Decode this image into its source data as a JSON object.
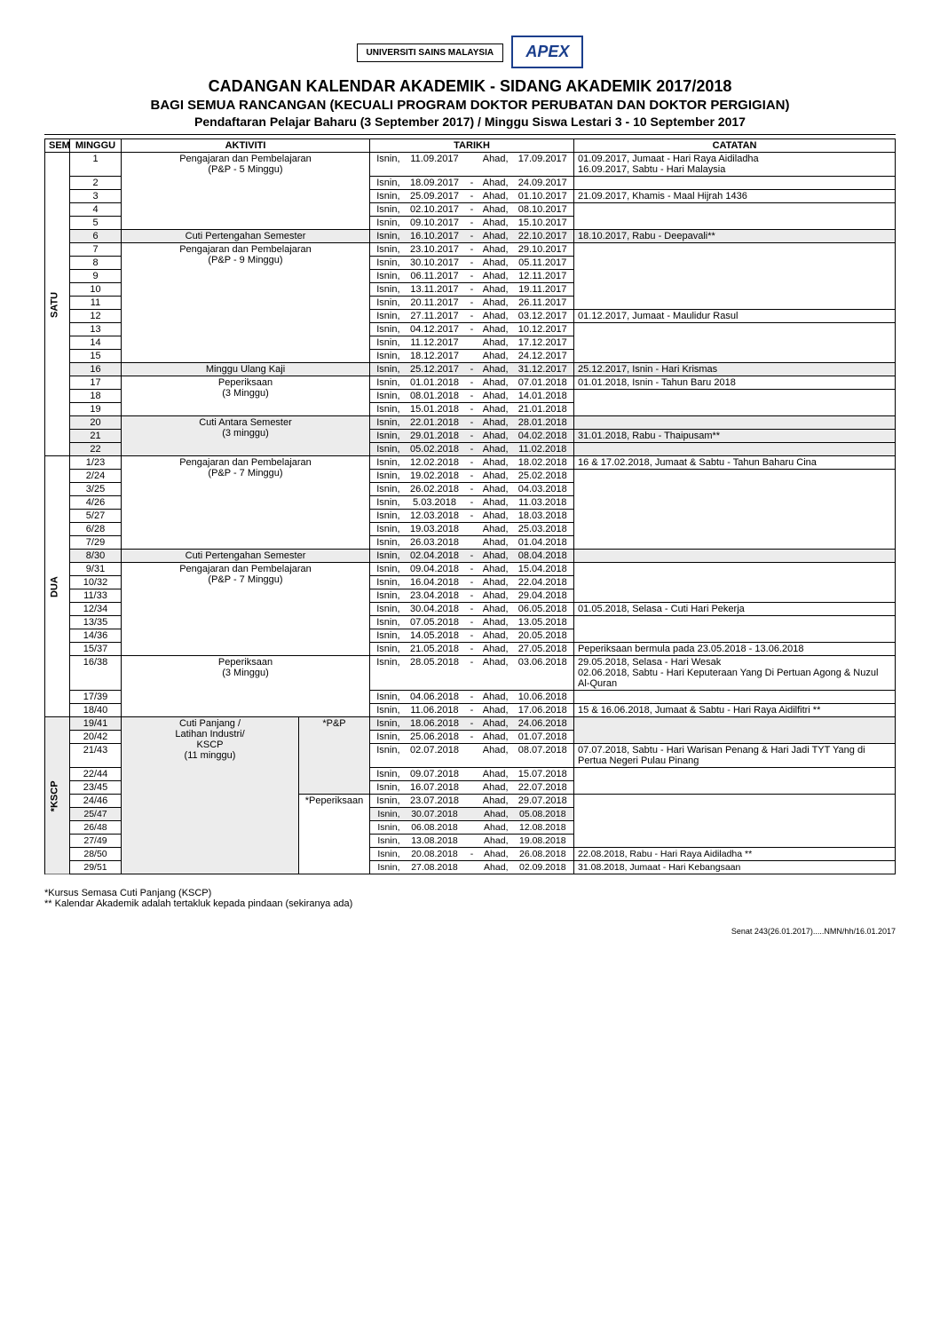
{
  "header": {
    "logo_text": "UNIVERSITI SAINS MALAYSIA",
    "apex_text": "APEX",
    "title1": "CADANGAN KALENDAR AKADEMIK - SIDANG AKADEMIK 2017/2018",
    "title2": "BAGI SEMUA RANCANGAN (KECUALI PROGRAM DOKTOR PERUBATAN DAN DOKTOR PERGIGIAN)",
    "title3": "Pendaftaran Pelajar Baharu (3 September 2017)  / Minggu Siswa Lestari 3 - 10 September 2017"
  },
  "columns": {
    "sem": "SEM",
    "week": "MINGGU",
    "act": "AKTIVITI",
    "date": "TARIKH",
    "note": "CATATAN"
  },
  "sem_labels": {
    "satu": "SATU",
    "dua": "DUA",
    "kscp": "*KSCP"
  },
  "activities": {
    "pp5": "Pengajaran dan Pembelajaran\n(P&P - 5 Minggu)",
    "cps": "Cuti Pertengahan Semester",
    "pp9": "Pengajaran dan Pembelajaran\n(P&P - 9 Minggu)",
    "muk": "Minggu Ulang Kaji",
    "pep3": "Peperiksaan\n(3 Minggu)",
    "cas3": "Cuti Antara Semester\n(3 minggu)",
    "pp7a": "Pengajaran dan Pembelajaran\n(P&P - 7 Minggu)",
    "cps2": "Cuti Pertengahan Semester",
    "pp7b": "Pengajaran dan Pembelajaran\n(P&P - 7 Minggu)",
    "pep3b": "Peperiksaan\n(3 Minggu)",
    "kscp_left": "Cuti Panjang /\nLatihan Industri/\nKSCP\n(11 minggu)",
    "kscp_pp": "*P&P",
    "kscp_pep": "*Peperiksaan"
  },
  "rows": [
    {
      "blk": "satu",
      "g": "pp5",
      "w": "1",
      "d1": "Isnin,",
      "dt1": "11.09.2017",
      "dash": "",
      "d2": "Ahad,",
      "dt2": "17.09.2017",
      "note": "01.09.2017, Jumaat - Hari Raya Aidiladha\n16.09.2017, Sabtu - Hari Malaysia"
    },
    {
      "blk": "satu",
      "g": "pp5",
      "w": "2",
      "d1": "Isnin,",
      "dt1": "18.09.2017",
      "dash": "-",
      "d2": "Ahad,",
      "dt2": "24.09.2017",
      "note": ""
    },
    {
      "blk": "satu",
      "g": "pp5",
      "w": "3",
      "d1": "Isnin,",
      "dt1": "25.09.2017",
      "dash": "-",
      "d2": "Ahad,",
      "dt2": "01.10.2017",
      "note": "21.09.2017, Khamis - Maal Hijrah 1436"
    },
    {
      "blk": "satu",
      "g": "pp5",
      "w": "4",
      "d1": "Isnin,",
      "dt1": "02.10.2017",
      "dash": "-",
      "d2": "Ahad,",
      "dt2": "08.10.2017",
      "note": ""
    },
    {
      "blk": "satu",
      "g": "pp5",
      "w": "5",
      "d1": "Isnin,",
      "dt1": "09.10.2017",
      "dash": "-",
      "d2": "Ahad,",
      "dt2": "15.10.2017",
      "note": ""
    },
    {
      "blk": "satu",
      "g": "cps",
      "w": "6",
      "d1": "Isnin,",
      "dt1": "16.10.2017",
      "dash": "-",
      "d2": "Ahad,",
      "dt2": "22.10.2017",
      "note": "18.10.2017, Rabu - Deepavali**",
      "shaded": true
    },
    {
      "blk": "satu",
      "g": "pp9",
      "w": "7",
      "d1": "Isnin,",
      "dt1": "23.10.2017",
      "dash": "-",
      "d2": "Ahad,",
      "dt2": "29.10.2017",
      "note": ""
    },
    {
      "blk": "satu",
      "g": "pp9",
      "w": "8",
      "d1": "Isnin,",
      "dt1": "30.10.2017",
      "dash": "-",
      "d2": "Ahad,",
      "dt2": "05.11.2017",
      "note": ""
    },
    {
      "blk": "satu",
      "g": "pp9",
      "w": "9",
      "d1": "Isnin,",
      "dt1": "06.11.2017",
      "dash": "-",
      "d2": "Ahad,",
      "dt2": "12.11.2017",
      "note": ""
    },
    {
      "blk": "satu",
      "g": "pp9",
      "w": "10",
      "d1": "Isnin,",
      "dt1": "13.11.2017",
      "dash": "-",
      "d2": "Ahad,",
      "dt2": "19.11.2017",
      "note": ""
    },
    {
      "blk": "satu",
      "g": "pp9",
      "w": "11",
      "d1": "Isnin,",
      "dt1": "20.11.2017",
      "dash": "-",
      "d2": "Ahad,",
      "dt2": "26.11.2017",
      "note": ""
    },
    {
      "blk": "satu",
      "g": "pp9",
      "w": "12",
      "d1": "Isnin,",
      "dt1": "27.11.2017",
      "dash": "-",
      "d2": "Ahad,",
      "dt2": "03.12.2017",
      "note": "01.12.2017, Jumaat - Maulidur Rasul"
    },
    {
      "blk": "satu",
      "g": "pp9",
      "w": "13",
      "d1": "Isnin,",
      "dt1": "04.12.2017",
      "dash": "-",
      "d2": "Ahad,",
      "dt2": "10.12.2017",
      "note": ""
    },
    {
      "blk": "satu",
      "g": "pp9",
      "w": "14",
      "d1": "Isnin,",
      "dt1": "11.12.2017",
      "dash": "",
      "d2": "Ahad,",
      "dt2": "17.12.2017",
      "note": ""
    },
    {
      "blk": "satu",
      "g": "pp9",
      "w": "15",
      "d1": "Isnin,",
      "dt1": "18.12.2017",
      "dash": "",
      "d2": "Ahad,",
      "dt2": "24.12.2017",
      "note": ""
    },
    {
      "blk": "satu",
      "g": "muk",
      "w": "16",
      "d1": "Isnin,",
      "dt1": "25.12.2017",
      "dash": "-",
      "d2": "Ahad,",
      "dt2": "31.12.2017",
      "note": "25.12.2017, Isnin - Hari Krismas",
      "shaded": true
    },
    {
      "blk": "satu",
      "g": "pep3",
      "w": "17",
      "d1": "Isnin,",
      "dt1": "01.01.2018",
      "dash": "-",
      "d2": "Ahad,",
      "dt2": "07.01.2018",
      "note": "01.01.2018, Isnin - Tahun Baru 2018"
    },
    {
      "blk": "satu",
      "g": "pep3",
      "w": "18",
      "d1": "Isnin,",
      "dt1": "08.01.2018",
      "dash": "-",
      "d2": "Ahad,",
      "dt2": "14.01.2018",
      "note": ""
    },
    {
      "blk": "satu",
      "g": "pep3",
      "w": "19",
      "d1": "Isnin,",
      "dt1": "15.01.2018",
      "dash": "-",
      "d2": "Ahad,",
      "dt2": "21.01.2018",
      "note": ""
    },
    {
      "blk": "satu",
      "g": "cas3",
      "w": "20",
      "d1": "Isnin,",
      "dt1": "22.01.2018",
      "dash": "-",
      "d2": "Ahad,",
      "dt2": "28.01.2018",
      "note": "",
      "shaded": true
    },
    {
      "blk": "satu",
      "g": "cas3",
      "w": "21",
      "d1": "Isnin,",
      "dt1": "29.01.2018",
      "dash": "-",
      "d2": "Ahad,",
      "dt2": "04.02.2018",
      "note": "31.01.2018, Rabu - Thaipusam**",
      "shaded": true
    },
    {
      "blk": "satu",
      "g": "cas3",
      "w": "22",
      "d1": "Isnin,",
      "dt1": "05.02.2018",
      "dash": "-",
      "d2": "Ahad,",
      "dt2": "11.02.2018",
      "note": "",
      "shaded": true
    },
    {
      "blk": "dua",
      "g": "pp7a",
      "w": "1/23",
      "d1": "Isnin,",
      "dt1": "12.02.2018",
      "dash": "-",
      "d2": "Ahad,",
      "dt2": "18.02.2018",
      "note": "16 & 17.02.2018, Jumaat & Sabtu - Tahun Baharu Cina"
    },
    {
      "blk": "dua",
      "g": "pp7a",
      "w": "2/24",
      "d1": "Isnin,",
      "dt1": "19.02.2018",
      "dash": "-",
      "d2": "Ahad,",
      "dt2": "25.02.2018",
      "note": ""
    },
    {
      "blk": "dua",
      "g": "pp7a",
      "w": "3/25",
      "d1": "Isnin,",
      "dt1": "26.02.2018",
      "dash": "-",
      "d2": "Ahad,",
      "dt2": "04.03.2018",
      "note": ""
    },
    {
      "blk": "dua",
      "g": "pp7a",
      "w": "4/26",
      "d1": "Isnin,",
      "dt1": "5.03.2018",
      "dash": "-",
      "d2": "Ahad,",
      "dt2": "11.03.2018",
      "note": ""
    },
    {
      "blk": "dua",
      "g": "pp7a",
      "w": "5/27",
      "d1": "Isnin,",
      "dt1": "12.03.2018",
      "dash": "-",
      "d2": "Ahad,",
      "dt2": "18.03.2018",
      "note": ""
    },
    {
      "blk": "dua",
      "g": "pp7a",
      "w": "6/28",
      "d1": "Isnin,",
      "dt1": "19.03.2018",
      "dash": "",
      "d2": "Ahad,",
      "dt2": "25.03.2018",
      "note": ""
    },
    {
      "blk": "dua",
      "g": "pp7a",
      "w": "7/29",
      "d1": "Isnin,",
      "dt1": "26.03.2018",
      "dash": "",
      "d2": "Ahad,",
      "dt2": "01.04.2018",
      "note": ""
    },
    {
      "blk": "dua",
      "g": "cps2",
      "w": "8/30",
      "d1": "Isnin,",
      "dt1": "02.04.2018",
      "dash": "-",
      "d2": "Ahad,",
      "dt2": "08.04.2018",
      "note": "",
      "shaded": true
    },
    {
      "blk": "dua",
      "g": "pp7b",
      "w": "9/31",
      "d1": "Isnin,",
      "dt1": "09.04.2018",
      "dash": "-",
      "d2": "Ahad,",
      "dt2": "15.04.2018",
      "note": ""
    },
    {
      "blk": "dua",
      "g": "pp7b",
      "w": "10/32",
      "d1": "Isnin,",
      "dt1": "16.04.2018",
      "dash": "-",
      "d2": "Ahad,",
      "dt2": "22.04.2018",
      "note": ""
    },
    {
      "blk": "dua",
      "g": "pp7b",
      "w": "11/33",
      "d1": "Isnin,",
      "dt1": "23.04.2018",
      "dash": "-",
      "d2": "Ahad,",
      "dt2": "29.04.2018",
      "note": ""
    },
    {
      "blk": "dua",
      "g": "pp7b",
      "w": "12/34",
      "d1": "Isnin,",
      "dt1": "30.04.2018",
      "dash": "-",
      "d2": "Ahad,",
      "dt2": "06.05.2018",
      "note": "01.05.2018, Selasa - Cuti Hari Pekerja"
    },
    {
      "blk": "dua",
      "g": "pp7b",
      "w": "13/35",
      "d1": "Isnin,",
      "dt1": "07.05.2018",
      "dash": "-",
      "d2": "Ahad,",
      "dt2": "13.05.2018",
      "note": ""
    },
    {
      "blk": "dua",
      "g": "pp7b",
      "w": "14/36",
      "d1": "Isnin,",
      "dt1": "14.05.2018",
      "dash": "-",
      "d2": "Ahad,",
      "dt2": "20.05.2018",
      "note": ""
    },
    {
      "blk": "dua",
      "g": "pp7b",
      "w": "15/37",
      "d1": "Isnin,",
      "dt1": "21.05.2018",
      "dash": "-",
      "d2": "Ahad,",
      "dt2": "27.05.2018",
      "note": "Peperiksaan bermula pada 23.05.2018 - 13.06.2018"
    },
    {
      "blk": "dua",
      "g": "pep3b",
      "w": "16/38",
      "d1": "Isnin,",
      "dt1": "28.05.2018",
      "dash": "-",
      "d2": "Ahad,",
      "dt2": "03.06.2018",
      "note": "29.05.2018, Selasa - Hari Wesak\n02.06.2018, Sabtu - Hari Keputeraan Yang Di Pertuan Agong & Nuzul Al-Quran"
    },
    {
      "blk": "dua",
      "g": "pep3b",
      "w": "17/39",
      "d1": "Isnin,",
      "dt1": "04.06.2018",
      "dash": "-",
      "d2": "Ahad,",
      "dt2": "10.06.2018",
      "note": ""
    },
    {
      "blk": "dua",
      "g": "pep3b",
      "w": "18/40",
      "d1": "Isnin,",
      "dt1": "11.06.2018",
      "dash": "-",
      "d2": "Ahad,",
      "dt2": "17.06.2018",
      "note": "15 & 16.06.2018, Jumaat & Sabtu - Hari Raya Aidilfitri **"
    },
    {
      "blk": "kscp",
      "g": "kscp_pp",
      "w": "19/41",
      "d1": "Isnin,",
      "dt1": "18.06.2018",
      "dash": "-",
      "d2": "Ahad,",
      "dt2": "24.06.2018",
      "note": "",
      "shaded": true
    },
    {
      "blk": "kscp",
      "g": "kscp_pp",
      "w": "20/42",
      "d1": "Isnin,",
      "dt1": "25.06.2018",
      "dash": "-",
      "d2": "Ahad,",
      "dt2": "01.07.2018",
      "note": ""
    },
    {
      "blk": "kscp",
      "g": "kscp_pp",
      "w": "21/43",
      "d1": "Isnin,",
      "dt1": "02.07.2018",
      "dash": "",
      "d2": "Ahad,",
      "dt2": "08.07.2018",
      "note": "07.07.2018, Sabtu - Hari Warisan Penang & Hari Jadi TYT Yang di Pertua Negeri Pulau Pinang"
    },
    {
      "blk": "kscp",
      "g": "kscp_pp",
      "w": "22/44",
      "d1": "Isnin,",
      "dt1": "09.07.2018",
      "dash": "",
      "d2": "Ahad,",
      "dt2": "15.07.2018",
      "note": ""
    },
    {
      "blk": "kscp",
      "g": "kscp_pp",
      "w": "23/45",
      "d1": "Isnin,",
      "dt1": "16.07.2018",
      "dash": "",
      "d2": "Ahad,",
      "dt2": "22.07.2018",
      "note": ""
    },
    {
      "blk": "kscp",
      "g": "kscp_pep",
      "w": "24/46",
      "d1": "Isnin,",
      "dt1": "23.07.2018",
      "dash": "",
      "d2": "Ahad,",
      "dt2": "29.07.2018",
      "note": ""
    },
    {
      "blk": "kscp",
      "g": "kscp_pep",
      "w": "25/47",
      "d1": "Isnin,",
      "dt1": "30.07.2018",
      "dash": "",
      "d2": "Ahad,",
      "dt2": "05.08.2018",
      "note": "",
      "shaded": true,
      "compact": true
    },
    {
      "blk": "kscp",
      "g": "kscp_pep",
      "w": "26/48",
      "d1": "Isnin,",
      "dt1": "06.08.2018",
      "dash": "",
      "d2": "Ahad,",
      "dt2": "12.08.2018",
      "note": "",
      "compact": true
    },
    {
      "blk": "kscp",
      "g": "kscp_pep",
      "w": "27/49",
      "d1": "Isnin,",
      "dt1": "13.08.2018",
      "dash": "",
      "d2": "Ahad,",
      "dt2": "19.08.2018",
      "note": "",
      "compact": true
    },
    {
      "blk": "kscp",
      "g": "kscp_pep",
      "w": "28/50",
      "d1": "Isnin,",
      "dt1": "20.08.2018",
      "dash": "-",
      "d2": "Ahad,",
      "dt2": "26.08.2018",
      "note": "22.08.2018, Rabu - Hari Raya Aidiladha **",
      "compact": true
    },
    {
      "blk": "kscp",
      "g": "kscp_pep",
      "w": "29/51",
      "d1": "Isnin,",
      "dt1": "27.08.2018",
      "dash": "",
      "d2": "Ahad,",
      "dt2": "02.09.2018",
      "note": "31.08.2018, Jumaat - Hari Kebangsaan",
      "compact": true
    }
  ],
  "footnotes": {
    "l1": "*Kursus Semasa Cuti Panjang (KSCP)",
    "l2": "** Kalendar Akademik adalah tertakluk kepada pindaan (sekiranya ada)"
  },
  "footer_right": "Senat 243(26.01.2017).....NMN/hh/16.01.2017"
}
